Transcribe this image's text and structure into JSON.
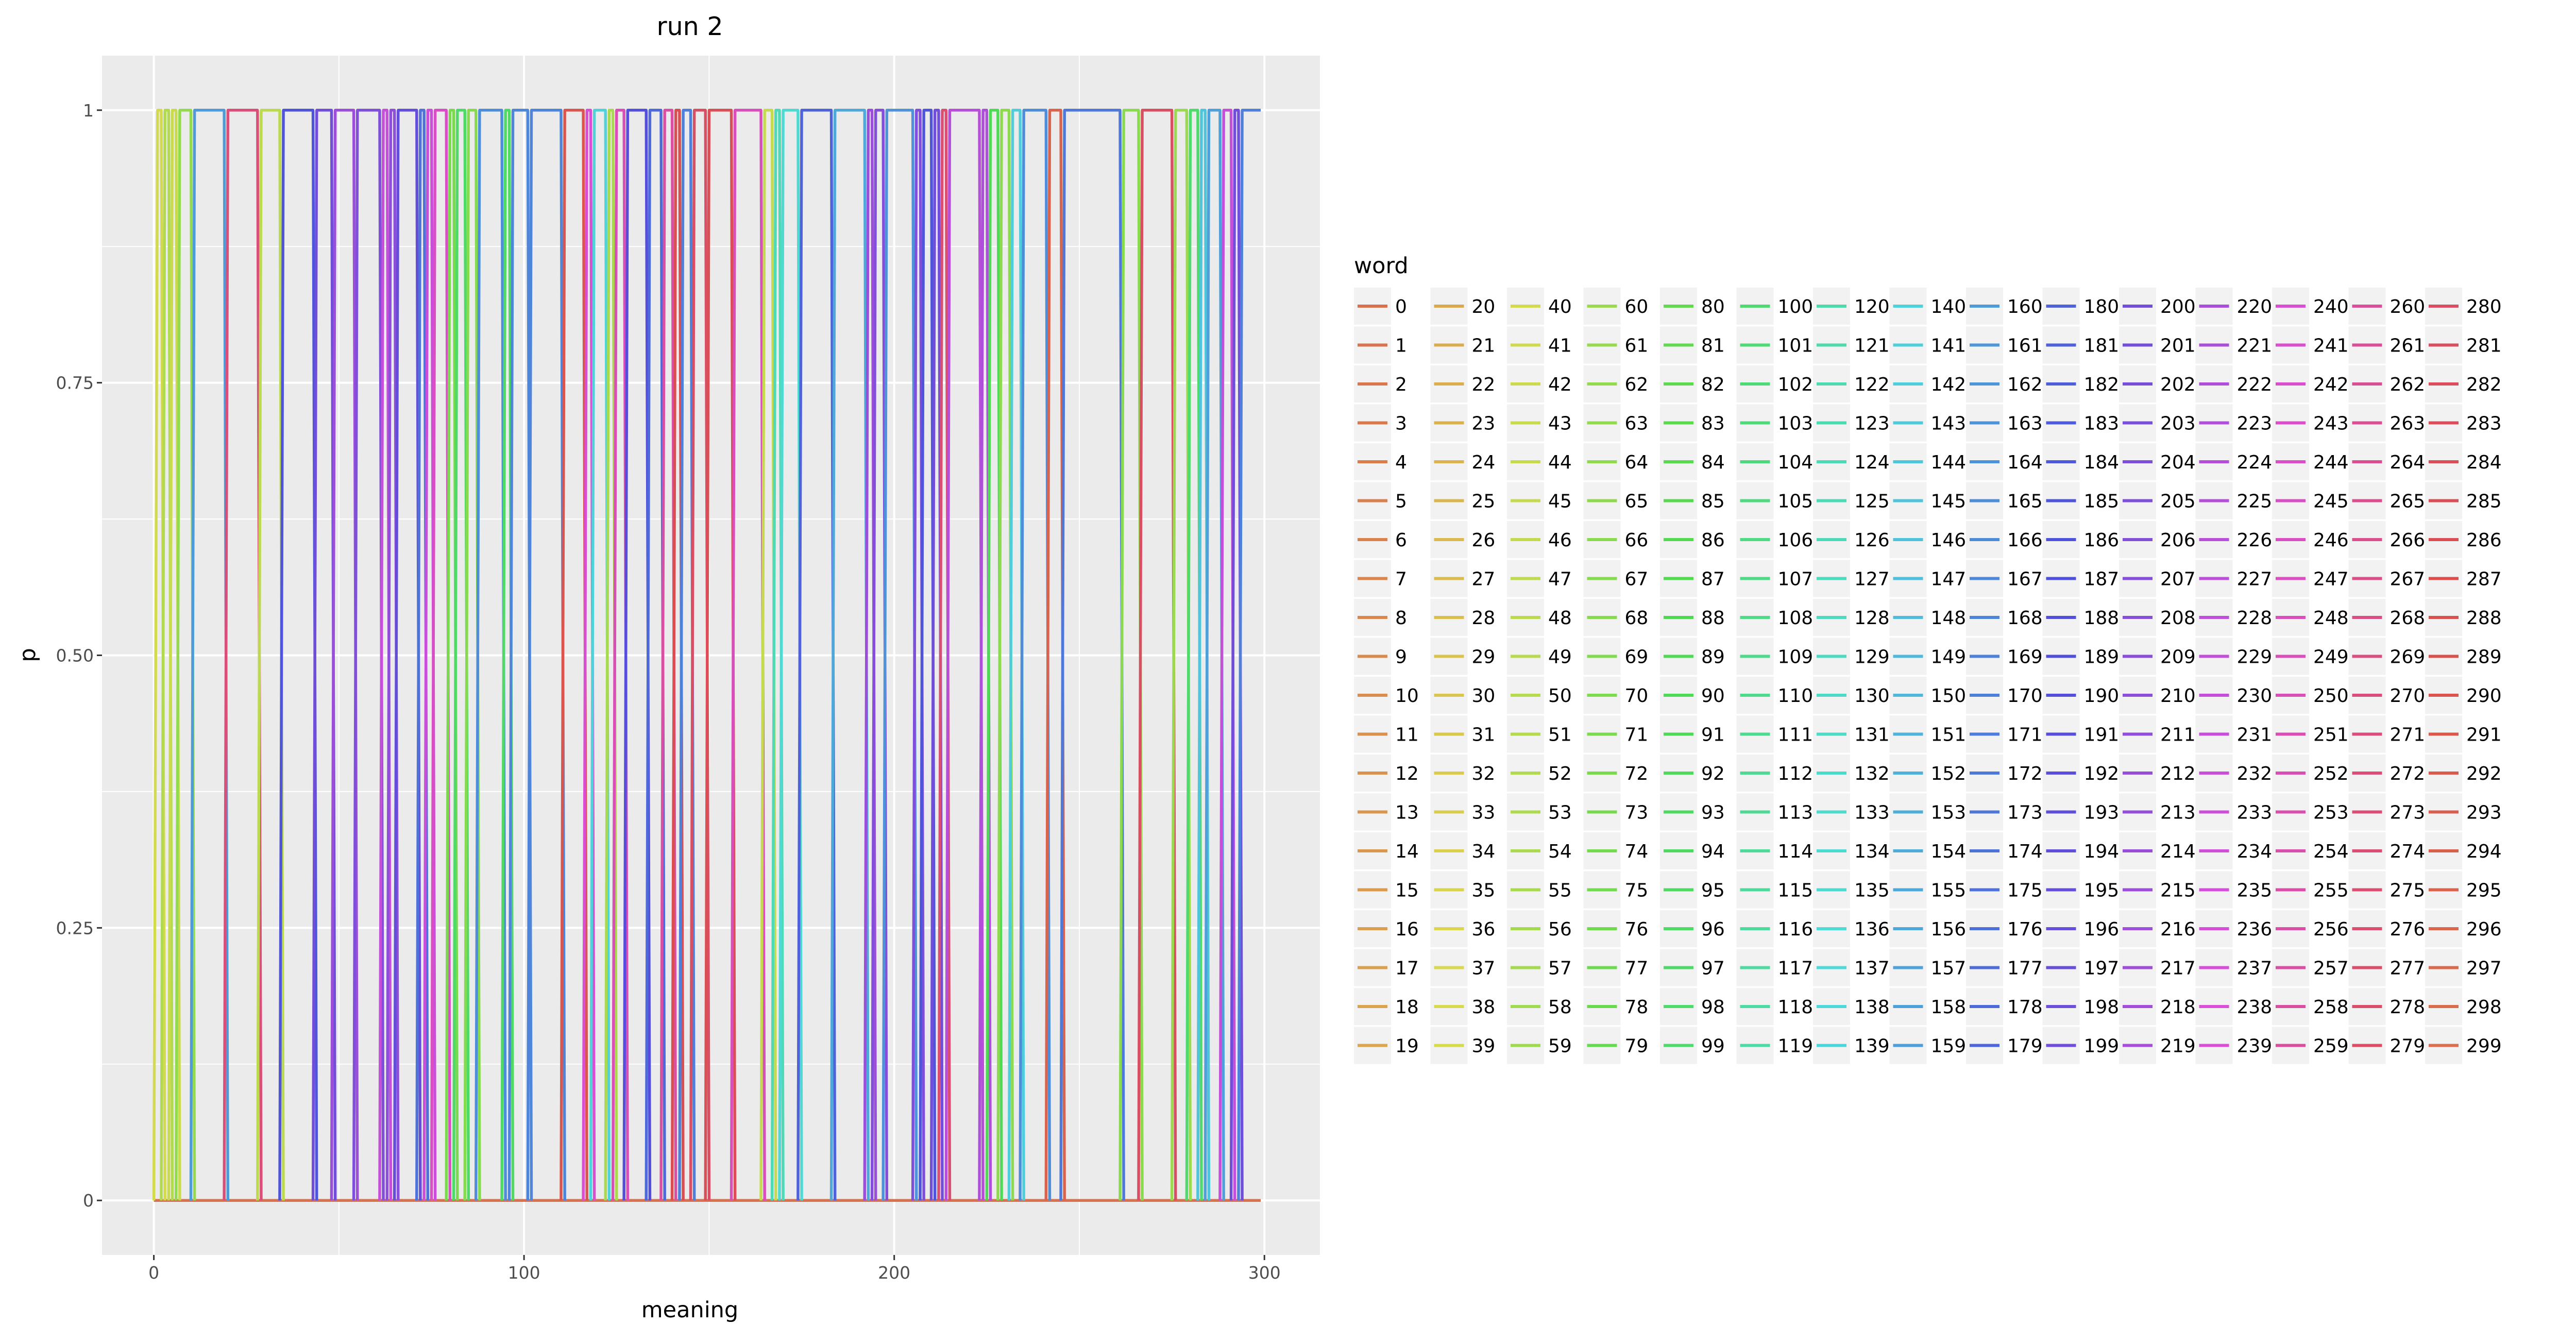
{
  "chart_data": {
    "type": "line",
    "title": "run 2",
    "xlabel": "meaning",
    "ylabel": "p",
    "xlim": [
      -14,
      315
    ],
    "ylim": [
      -0.05,
      1.05
    ],
    "x_ticks": [
      0,
      100,
      200,
      300
    ],
    "x_tick_labels": [
      "0",
      "100",
      "200",
      "300"
    ],
    "y_ticks": [
      0,
      0.25,
      0.5,
      0.75,
      1
    ],
    "y_tick_labels": [
      "0",
      "0.25",
      "0.50",
      "0.75",
      "1"
    ],
    "grid": true,
    "legend_title": "word",
    "legend_placement": "right",
    "series_count": 300,
    "x_range": [
      0,
      299
    ],
    "step_segments": [
      {
        "start": 1,
        "end": 3,
        "word": 40
      },
      {
        "start": 3,
        "end": 5,
        "word": 52
      },
      {
        "start": 5,
        "end": 7,
        "word": 43
      },
      {
        "start": 7,
        "end": 11,
        "word": 63
      },
      {
        "start": 11,
        "end": 20,
        "word": 160
      },
      {
        "start": 20,
        "end": 29,
        "word": 272
      },
      {
        "start": 29,
        "end": 35,
        "word": 48
      },
      {
        "start": 35,
        "end": 44,
        "word": 185
      },
      {
        "start": 44,
        "end": 49,
        "word": 200
      },
      {
        "start": 49,
        "end": 55,
        "word": 215
      },
      {
        "start": 55,
        "end": 62,
        "word": 205
      },
      {
        "start": 62,
        "end": 64,
        "word": 230
      },
      {
        "start": 64,
        "end": 66,
        "word": 210
      },
      {
        "start": 66,
        "end": 72,
        "word": 195
      },
      {
        "start": 72,
        "end": 74,
        "word": 175
      },
      {
        "start": 74,
        "end": 76,
        "word": 232
      },
      {
        "start": 76,
        "end": 80,
        "word": 245
      },
      {
        "start": 80,
        "end": 82,
        "word": 72
      },
      {
        "start": 82,
        "end": 85,
        "word": 96
      },
      {
        "start": 85,
        "end": 88,
        "word": 68
      },
      {
        "start": 88,
        "end": 95,
        "word": 165
      },
      {
        "start": 95,
        "end": 97,
        "word": 95
      },
      {
        "start": 97,
        "end": 102,
        "word": 167
      },
      {
        "start": 102,
        "end": 111,
        "word": 168
      },
      {
        "start": 111,
        "end": 117,
        "word": 290
      },
      {
        "start": 117,
        "end": 119,
        "word": 240
      },
      {
        "start": 119,
        "end": 123,
        "word": 140
      },
      {
        "start": 123,
        "end": 125,
        "word": 55
      },
      {
        "start": 125,
        "end": 128,
        "word": 250
      },
      {
        "start": 128,
        "end": 134,
        "word": 190
      },
      {
        "start": 134,
        "end": 138,
        "word": 178
      },
      {
        "start": 138,
        "end": 141,
        "word": 257
      },
      {
        "start": 141,
        "end": 143,
        "word": 286
      },
      {
        "start": 143,
        "end": 146,
        "word": 170
      },
      {
        "start": 146,
        "end": 150,
        "word": 280
      },
      {
        "start": 150,
        "end": 157,
        "word": 285
      },
      {
        "start": 157,
        "end": 165,
        "word": 248
      },
      {
        "start": 165,
        "end": 168,
        "word": 45
      },
      {
        "start": 168,
        "end": 170,
        "word": 125
      },
      {
        "start": 170,
        "end": 175,
        "word": 135
      },
      {
        "start": 175,
        "end": 184,
        "word": 180
      },
      {
        "start": 184,
        "end": 193,
        "word": 155
      },
      {
        "start": 193,
        "end": 195,
        "word": 215
      },
      {
        "start": 195,
        "end": 198,
        "word": 207
      },
      {
        "start": 198,
        "end": 206,
        "word": 163
      },
      {
        "start": 206,
        "end": 208,
        "word": 205
      },
      {
        "start": 208,
        "end": 211,
        "word": 185
      },
      {
        "start": 211,
        "end": 213,
        "word": 200
      },
      {
        "start": 213,
        "end": 215,
        "word": 275
      },
      {
        "start": 215,
        "end": 224,
        "word": 225
      },
      {
        "start": 224,
        "end": 226,
        "word": 222
      },
      {
        "start": 226,
        "end": 229,
        "word": 90
      },
      {
        "start": 229,
        "end": 232,
        "word": 65
      },
      {
        "start": 232,
        "end": 235,
        "word": 142
      },
      {
        "start": 235,
        "end": 242,
        "word": 165
      },
      {
        "start": 242,
        "end": 246,
        "word": 295
      },
      {
        "start": 246,
        "end": 262,
        "word": 172
      },
      {
        "start": 262,
        "end": 267,
        "word": 66
      },
      {
        "start": 267,
        "end": 276,
        "word": 280
      },
      {
        "start": 276,
        "end": 280,
        "word": 60
      },
      {
        "start": 280,
        "end": 283,
        "word": 98
      },
      {
        "start": 283,
        "end": 285,
        "word": 145
      },
      {
        "start": 285,
        "end": 289,
        "word": 158
      },
      {
        "start": 289,
        "end": 292,
        "word": 230
      },
      {
        "start": 292,
        "end": 294,
        "word": 200
      },
      {
        "start": 294,
        "end": 299,
        "word": 170
      }
    ]
  }
}
